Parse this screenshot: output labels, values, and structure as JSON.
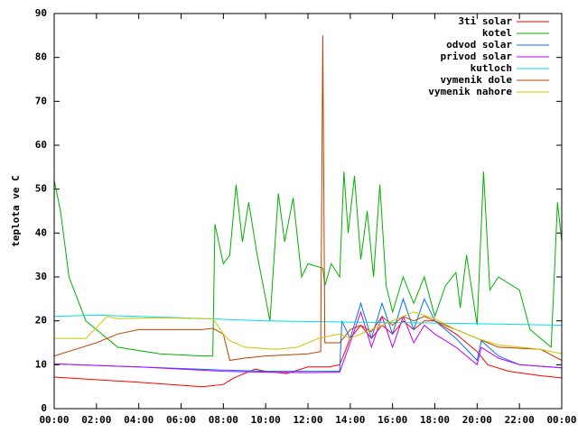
{
  "chart_data": {
    "type": "line",
    "ylabel": "teplota ve C",
    "xlim": [
      0,
      24
    ],
    "xticks": [
      {
        "value": 0,
        "label": "00:00"
      },
      {
        "value": 2,
        "label": "02:00"
      },
      {
        "value": 4,
        "label": "04:00"
      },
      {
        "value": 6,
        "label": "06:00"
      },
      {
        "value": 8,
        "label": "08:00"
      },
      {
        "value": 10,
        "label": "10:00"
      },
      {
        "value": 12,
        "label": "12:00"
      },
      {
        "value": 14,
        "label": "14:00"
      },
      {
        "value": 16,
        "label": "16:00"
      },
      {
        "value": 18,
        "label": "18:00"
      },
      {
        "value": 20,
        "label": "20:00"
      },
      {
        "value": 22,
        "label": "22:00"
      },
      {
        "value": 24,
        "label": "00:00"
      }
    ],
    "ylim": [
      0,
      90
    ],
    "yticks": [
      0,
      10,
      20,
      30,
      40,
      50,
      60,
      70,
      80,
      90
    ],
    "legend": "top-right",
    "grid": false,
    "series": [
      {
        "name": "3ti solar",
        "color": "#ff0000",
        "x": [
          0,
          4,
          7,
          8,
          8.5,
          9.5,
          10,
          11,
          12,
          13,
          13.5,
          14,
          14.5,
          15,
          15.5,
          16,
          16.5,
          17,
          17.5,
          18,
          19,
          20,
          20.5,
          21.5,
          23,
          24
        ],
        "values": [
          7.2,
          6,
          5,
          5.5,
          7,
          9,
          8.5,
          8,
          9.5,
          9.5,
          10,
          16,
          19,
          16,
          19,
          17,
          20,
          18,
          20,
          20,
          17,
          13,
          10,
          8.5,
          7.5,
          7
        ]
      },
      {
        "name": "kotel",
        "color": "#00b000",
        "x": [
          0,
          0.3,
          0.7,
          1.5,
          3,
          5,
          7,
          7.5,
          7.6,
          8,
          8.3,
          8.6,
          8.9,
          9.2,
          9.6,
          10.2,
          10.6,
          10.9,
          11.3,
          11.7,
          12,
          12.7,
          12.8,
          13.1,
          13.5,
          13.7,
          13.9,
          14.2,
          14.5,
          14.8,
          15.1,
          15.4,
          15.7,
          16,
          16.5,
          17,
          17.5,
          18,
          18.5,
          19,
          19.2,
          19.5,
          20,
          20.3,
          20.6,
          21,
          22,
          22.5,
          23.5,
          23.8,
          24
        ],
        "values": [
          52,
          45,
          30,
          20,
          14,
          12.5,
          12,
          12,
          42,
          33,
          35,
          51,
          38,
          47,
          35,
          20,
          49,
          38,
          48,
          30,
          33,
          32,
          28,
          33,
          30,
          54,
          40,
          53,
          34,
          45,
          30,
          51,
          28,
          22,
          30,
          24,
          30,
          21,
          28,
          31,
          23,
          35,
          19,
          54,
          27,
          30,
          27,
          18,
          14,
          47,
          38
        ]
      },
      {
        "name": "odvod solar",
        "color": "#0070ff",
        "x": [
          0,
          4,
          8,
          10,
          12,
          13.5,
          13.6,
          14,
          14.5,
          15,
          15.5,
          16,
          16.5,
          17,
          17.5,
          18,
          19,
          20,
          20.2,
          21,
          22,
          24
        ],
        "values": [
          10.2,
          9.5,
          8.8,
          8.5,
          8.5,
          8.5,
          20,
          16,
          24,
          16,
          24,
          17,
          25,
          18,
          25,
          20,
          16,
          11,
          15.5,
          12,
          10,
          9.3
        ]
      },
      {
        "name": "privod solar",
        "color": "#c000ff",
        "x": [
          0,
          4,
          8,
          10,
          12,
          13.5,
          14,
          14.5,
          15,
          15.5,
          16,
          16.5,
          17,
          17.5,
          18,
          19,
          20,
          20.2,
          21,
          22,
          24
        ],
        "values": [
          10.2,
          9.5,
          8.5,
          8.3,
          8.2,
          8.3,
          15,
          22,
          14,
          21,
          14,
          21,
          15,
          19,
          17,
          14,
          10,
          14,
          11.5,
          10,
          9.3
        ]
      },
      {
        "name": "kutloch",
        "color": "#00e0e0",
        "x": [
          0,
          2,
          6,
          10,
          14,
          18,
          24
        ],
        "values": [
          21,
          21.3,
          20.7,
          20,
          19.7,
          19.5,
          19
        ]
      },
      {
        "name": "vymenik dole",
        "color": "#c04000",
        "x": [
          0,
          1,
          2,
          3,
          4,
          7,
          7.5,
          8,
          8.3,
          9,
          10,
          12,
          12.6,
          12.7,
          12.8,
          13.5,
          14,
          14.5,
          15,
          15.5,
          16,
          16.5,
          17,
          17.5,
          18,
          19,
          20,
          21,
          23,
          24
        ],
        "values": [
          12,
          13.5,
          15,
          17,
          18,
          18,
          18.3,
          17,
          11,
          11.5,
          12,
          12.5,
          13,
          85,
          15,
          15,
          18,
          19,
          17.5,
          21,
          19,
          21,
          20,
          21,
          20,
          18,
          16,
          14,
          13.5,
          11
        ]
      },
      {
        "name": "vymenik nahore",
        "color": "#c8c800",
        "x": [
          0,
          1.5,
          2.5,
          3,
          5,
          7,
          7.5,
          8,
          8.3,
          9,
          10.5,
          11.5,
          12.5,
          13.5,
          14,
          15,
          16,
          17,
          18,
          19,
          20,
          21,
          23,
          24
        ],
        "values": [
          16,
          16,
          21,
          20.5,
          20.7,
          20.5,
          20.5,
          17,
          15.5,
          14,
          13.5,
          14,
          16,
          17,
          16,
          18,
          20,
          22,
          20.5,
          18,
          16,
          14.5,
          13.5,
          12.5
        ]
      }
    ]
  }
}
